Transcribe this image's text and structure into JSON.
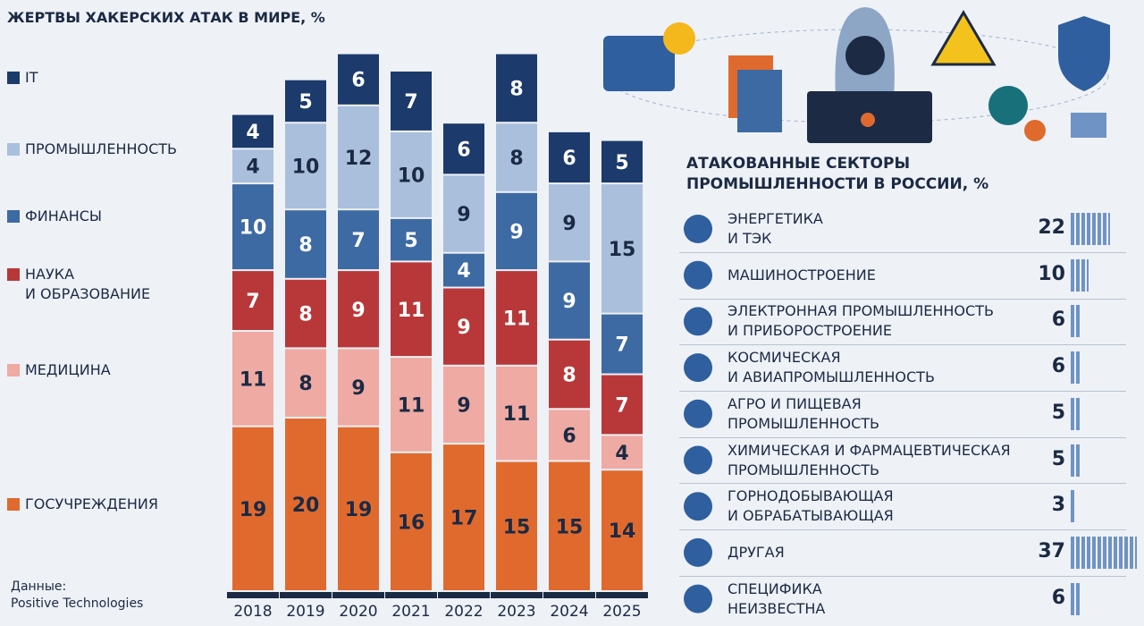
{
  "chart_data": [
    {
      "type": "stacked-bar",
      "title": "ЖЕРТВЫ ХАКЕРСКИХ АТАК В МИРЕ, %",
      "categories": [
        "2018",
        "2019",
        "2020",
        "2021",
        "2022",
        "2023",
        "2024",
        "2025"
      ],
      "series": [
        {
          "name": "ГОСУЧРЕЖДЕНИЯ",
          "color": "#e06a2e",
          "values": [
            19,
            20,
            19,
            16,
            17,
            15,
            15,
            14
          ]
        },
        {
          "name": "МЕДИЦИНА",
          "color": "#eeaaa3",
          "values": [
            11,
            8,
            9,
            11,
            9,
            11,
            6,
            4
          ]
        },
        {
          "name": "НАУКА\nИ ОБРАЗОВАНИЕ",
          "color": "#b8383a",
          "values": [
            7,
            8,
            9,
            11,
            9,
            11,
            8,
            7
          ]
        },
        {
          "name": "ФИНАНСЫ",
          "color": "#3e6aa3",
          "values": [
            10,
            8,
            7,
            5,
            4,
            9,
            9,
            7
          ]
        },
        {
          "name": "ПРОМЫШЛЕННОСТЬ",
          "color": "#a9bfdc",
          "values": [
            4,
            10,
            12,
            10,
            9,
            8,
            9,
            15
          ]
        },
        {
          "name": "IT",
          "color": "#1c3a6b",
          "values": [
            4,
            5,
            6,
            7,
            6,
            8,
            6,
            5
          ]
        }
      ],
      "source_label": "Данные:",
      "source": "Positive Technologies"
    },
    {
      "type": "hbar",
      "title": "АТАКОВАННЫЕ СЕКТОРЫ\nПРОМЫШЛЕННОСТИ В РОССИИ, %",
      "color": "#6f93c4",
      "categories": [
        "ЭНЕРГЕТИКА\nИ ТЭК",
        "МАШИНОСТРОЕНИЕ",
        "ЭЛЕКТРОННАЯ ПРОМЫШЛЕННОСТЬ\nИ ПРИБОРОСТРОЕНИЕ",
        "КОСМИЧЕСКАЯ\nИ АВИАПРОМЫШЛЕННОСТЬ",
        "АГРО И ПИЩЕВАЯ\nПРОМЫШЛЕННОСТЬ",
        "ХИМИЧЕСКАЯ И ФАРМАЦЕВТИЧЕСКАЯ\nПРОМЫШЛЕННОСТЬ",
        "ГОРНОДОБЫВАЮЩАЯ\nИ ОБРАБАТЫВАЮЩАЯ",
        "ДРУГАЯ",
        "СПЕЦИФИКА\nНЕИЗВЕСТНА"
      ],
      "values": [
        22,
        10,
        6,
        6,
        5,
        5,
        3,
        37,
        6
      ]
    }
  ]
}
